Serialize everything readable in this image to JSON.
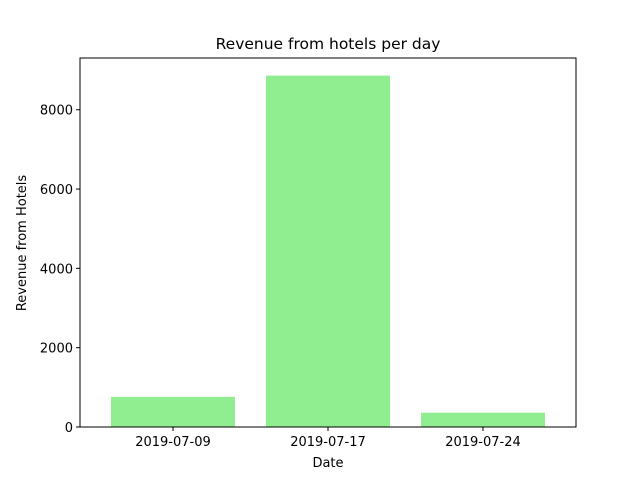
{
  "chart_data": {
    "type": "bar",
    "title": "Revenue from hotels per day",
    "xlabel": "Date",
    "ylabel": "Revenue from Hotels",
    "categories": [
      "2019-07-09",
      "2019-07-17",
      "2019-07-24"
    ],
    "values": [
      760,
      8860,
      360
    ],
    "ylim": [
      0,
      9304
    ],
    "yticks": [
      0,
      2000,
      4000,
      6000,
      8000
    ],
    "bar_color": "#90ee90",
    "grid": false,
    "legend": "none"
  }
}
